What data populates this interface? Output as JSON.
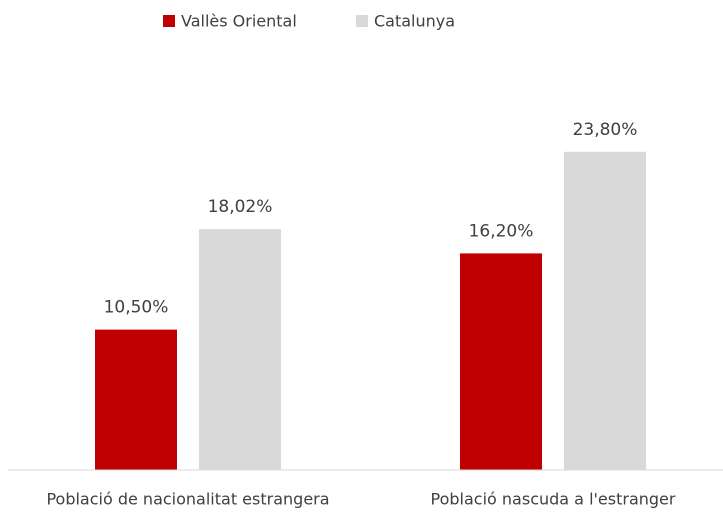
{
  "chart_data": {
    "type": "bar",
    "categories": [
      "Població de nacionalitat estrangera",
      "Població nascuda a l'estranger"
    ],
    "series": [
      {
        "name": "Vallès Oriental",
        "color": "#c00000",
        "values": [
          10.5,
          16.2
        ],
        "value_labels": [
          "10,50%",
          "16,20%"
        ]
      },
      {
        "name": "Catalunya",
        "color": "#d9d9d9",
        "values": [
          18.02,
          23.8
        ],
        "value_labels": [
          "18,02%",
          "23,80%"
        ]
      }
    ],
    "legend": "top"
  }
}
